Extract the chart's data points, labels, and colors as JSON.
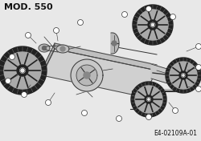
{
  "title": "MOD. 550",
  "code": "E4-02109A-01",
  "bg_color": "#e8e8e8",
  "title_fontsize": 8,
  "code_fontsize": 5.5,
  "title_color": "#111111",
  "line_color": "#333333",
  "wheel_dark": "#222222",
  "wheel_mid": "#666666",
  "wheel_light": "#aaaaaa",
  "plate_top": "#d0d0d0",
  "plate_side": "#b0b0b0",
  "plate_front": "#c0c0c0",
  "plate_edge": "#444444"
}
